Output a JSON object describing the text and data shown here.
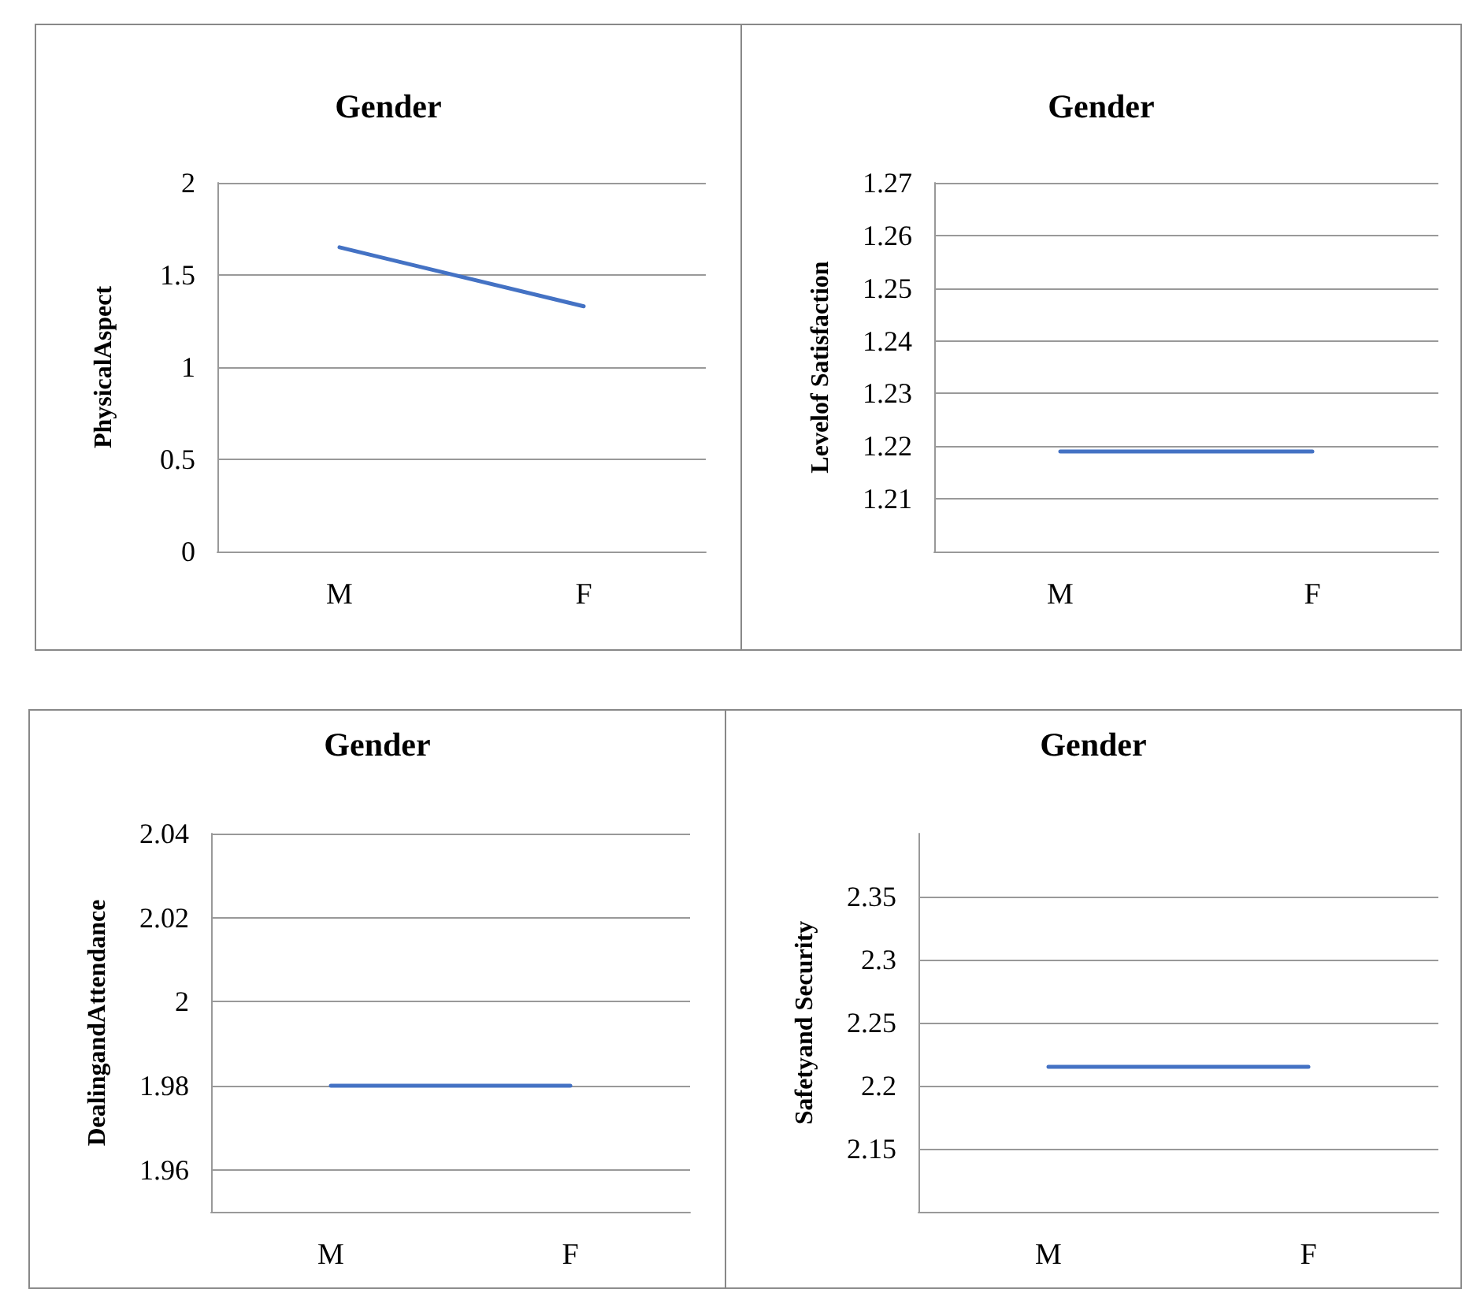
{
  "chart_data": [
    {
      "type": "line",
      "title": "Gender",
      "ylabel": "PhysicalAspect",
      "categories": [
        "M",
        "F"
      ],
      "series": [
        {
          "color": "#4472c4",
          "values": [
            1.65,
            1.33
          ]
        }
      ],
      "ylim": [
        0,
        2
      ],
      "yticks": [
        0,
        0.5,
        1,
        1.5,
        2
      ],
      "grid": "y",
      "marker": "none",
      "line_style": "solid"
    },
    {
      "type": "line",
      "title": "Gender",
      "ylabel": "Levelof Satisfaction",
      "categories": [
        "M",
        "F"
      ],
      "series": [
        {
          "color": "#4472c4",
          "values": [
            1.219,
            1.219
          ]
        }
      ],
      "ylim": [
        1.2,
        1.27
      ],
      "yticks": [
        1.21,
        1.22,
        1.23,
        1.24,
        1.25,
        1.26,
        1.27
      ],
      "grid": "y",
      "marker": "none",
      "line_style": "solid"
    },
    {
      "type": "line",
      "title": "Gender",
      "ylabel": "DealingandAttendance",
      "categories": [
        "M",
        "F"
      ],
      "series": [
        {
          "color": "#4472c4",
          "values": [
            1.98,
            1.98
          ]
        }
      ],
      "ylim": [
        1.95,
        2.04
      ],
      "yticks": [
        1.96,
        1.98,
        2,
        2.02,
        2.04
      ],
      "grid": "y",
      "marker": "none",
      "line_style": "solid"
    },
    {
      "type": "line",
      "title": "Gender",
      "ylabel": "Safetyand Security",
      "categories": [
        "M",
        "F"
      ],
      "series": [
        {
          "color": "#4472c4",
          "values": [
            2.215,
            2.215
          ]
        }
      ],
      "ylim": [
        2.1,
        2.4
      ],
      "yticks": [
        2.15,
        2.2,
        2.25,
        2.3,
        2.35
      ],
      "grid": "y",
      "marker": "none",
      "line_style": "solid"
    }
  ]
}
